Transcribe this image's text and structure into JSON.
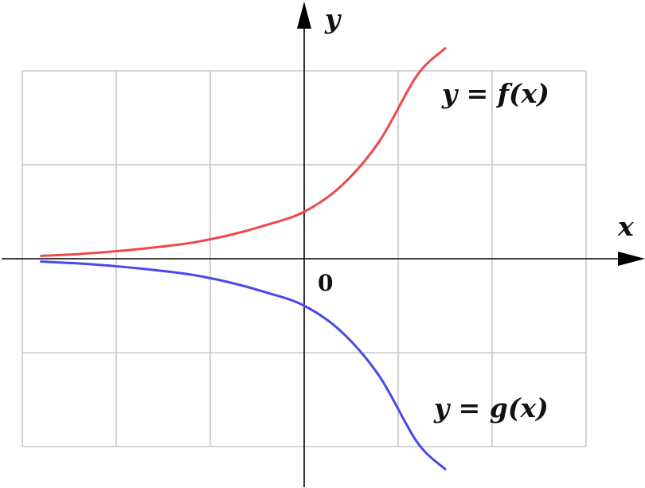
{
  "chart_data": {
    "type": "line",
    "title": "",
    "xlabel": "x",
    "ylabel": "y",
    "origin_label": "0",
    "xlim": [
      -3,
      3
    ],
    "ylim": [
      -2,
      2
    ],
    "grid": true,
    "grid_step": 1,
    "colors": {
      "f": "#f04848",
      "g": "#4848ee"
    },
    "series": [
      {
        "id": "f",
        "name": "y = f(x)",
        "x": [
          -2.8,
          -2.4,
          -2.0,
          -1.6,
          -1.2,
          -0.8,
          -0.4,
          0.0,
          0.4,
          0.8,
          1.2,
          1.5
        ],
        "y": [
          0.03,
          0.05,
          0.08,
          0.12,
          0.17,
          0.25,
          0.36,
          0.5,
          0.78,
          1.25,
          1.95,
          2.24
        ]
      },
      {
        "id": "g",
        "name": "y = g(x)",
        "x": [
          -2.8,
          -2.4,
          -2.0,
          -1.6,
          -1.2,
          -0.8,
          -0.4,
          0.0,
          0.4,
          0.8,
          1.2,
          1.5
        ],
        "y": [
          -0.03,
          -0.05,
          -0.08,
          -0.12,
          -0.17,
          -0.25,
          -0.36,
          -0.5,
          -0.78,
          -1.25,
          -1.95,
          -2.24
        ]
      }
    ]
  }
}
